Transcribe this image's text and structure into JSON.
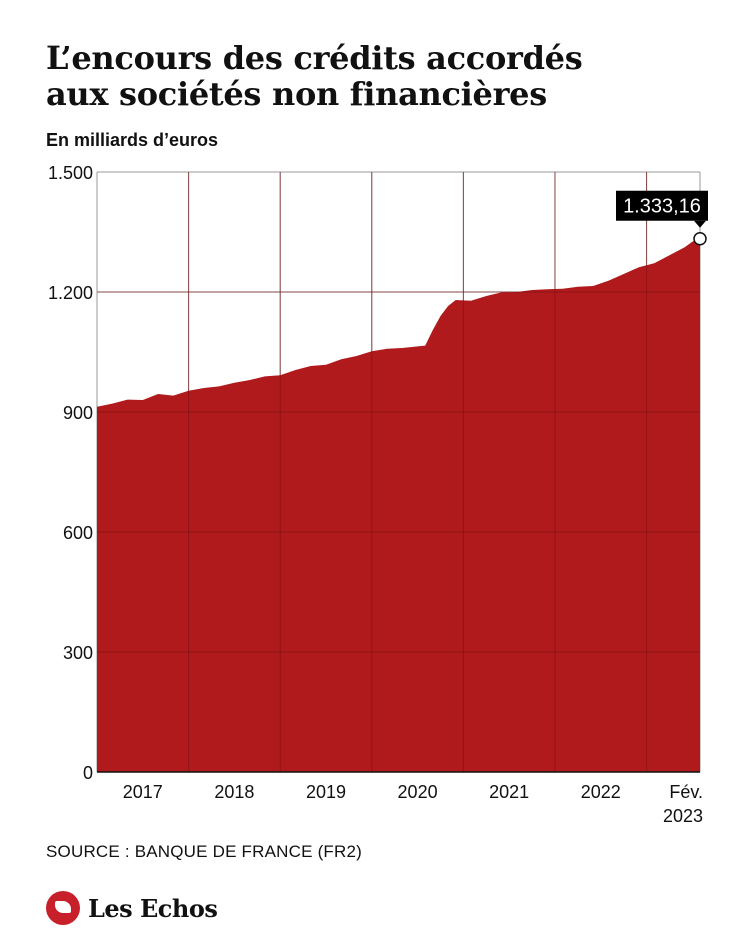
{
  "header": {
    "title_line1": "L’encours des crédits accordés",
    "title_line2": "aux sociétés non financières",
    "subtitle": "En milliards d’euros"
  },
  "footer": {
    "source": "SOURCE : BANQUE DE FRANCE (FR2)",
    "brand": "Les Echos"
  },
  "colors": {
    "area_fill": "#b01a1d",
    "grid": "#999999",
    "callout_bg": "#000000",
    "brand_red": "#c8202a"
  },
  "chart_data": {
    "type": "area",
    "title": "L’encours des crédits accordés aux sociétés non financières",
    "ylabel": "En milliards d’euros",
    "xlabel": "",
    "ylim": [
      0,
      1500
    ],
    "yticks": [
      0,
      300,
      600,
      900,
      1200,
      1500
    ],
    "ytick_labels": [
      "0",
      "300",
      "600",
      "900",
      "1.200",
      "1.500"
    ],
    "xlim": [
      "2016-07",
      "2023-02"
    ],
    "x_gridlines": [
      "2016-07",
      "2017-07",
      "2018-07",
      "2019-07",
      "2020-07",
      "2021-07",
      "2022-07"
    ],
    "xtick_labels": [
      {
        "at": "2017-01",
        "label": "2017"
      },
      {
        "at": "2018-01",
        "label": "2018"
      },
      {
        "at": "2019-01",
        "label": "2019"
      },
      {
        "at": "2020-01",
        "label": "2020"
      },
      {
        "at": "2021-01",
        "label": "2021"
      },
      {
        "at": "2022-01",
        "label": "2022"
      },
      {
        "at": "2023-02",
        "label": "Fév.",
        "label2": "2023"
      }
    ],
    "grid": true,
    "series": [
      {
        "points": [
          [
            "2016-07",
            913
          ],
          [
            "2016-09",
            921
          ],
          [
            "2016-11",
            931
          ],
          [
            "2017-01",
            930
          ],
          [
            "2017-03",
            945
          ],
          [
            "2017-05",
            941
          ],
          [
            "2017-07",
            953
          ],
          [
            "2017-09",
            960
          ],
          [
            "2017-11",
            964
          ],
          [
            "2018-01",
            973
          ],
          [
            "2018-03",
            980
          ],
          [
            "2018-05",
            989
          ],
          [
            "2018-07",
            992
          ],
          [
            "2018-09",
            1005
          ],
          [
            "2018-11",
            1015
          ],
          [
            "2019-01",
            1018
          ],
          [
            "2019-03",
            1032
          ],
          [
            "2019-05",
            1040
          ],
          [
            "2019-07",
            1052
          ],
          [
            "2019-09",
            1058
          ],
          [
            "2019-11",
            1060
          ],
          [
            "2020-01",
            1064
          ],
          [
            "2020-02",
            1066
          ],
          [
            "2020-03",
            1105
          ],
          [
            "2020-04",
            1140
          ],
          [
            "2020-05",
            1165
          ],
          [
            "2020-06",
            1180
          ],
          [
            "2020-08",
            1178
          ],
          [
            "2020-10",
            1190
          ],
          [
            "2020-12",
            1199
          ],
          [
            "2021-02",
            1200
          ],
          [
            "2021-04",
            1205
          ],
          [
            "2021-06",
            1207
          ],
          [
            "2021-08",
            1208
          ],
          [
            "2021-10",
            1213
          ],
          [
            "2021-12",
            1215
          ],
          [
            "2022-02",
            1228
          ],
          [
            "2022-04",
            1245
          ],
          [
            "2022-06",
            1262
          ],
          [
            "2022-08",
            1272
          ],
          [
            "2022-10",
            1292
          ],
          [
            "2022-12",
            1312
          ],
          [
            "2023-01",
            1326
          ],
          [
            "2023-02",
            1333.16
          ]
        ]
      }
    ],
    "annotations": [
      {
        "at": "2023-02",
        "value": 1333.16,
        "label": "1.333,16",
        "marker": "circle"
      }
    ]
  }
}
